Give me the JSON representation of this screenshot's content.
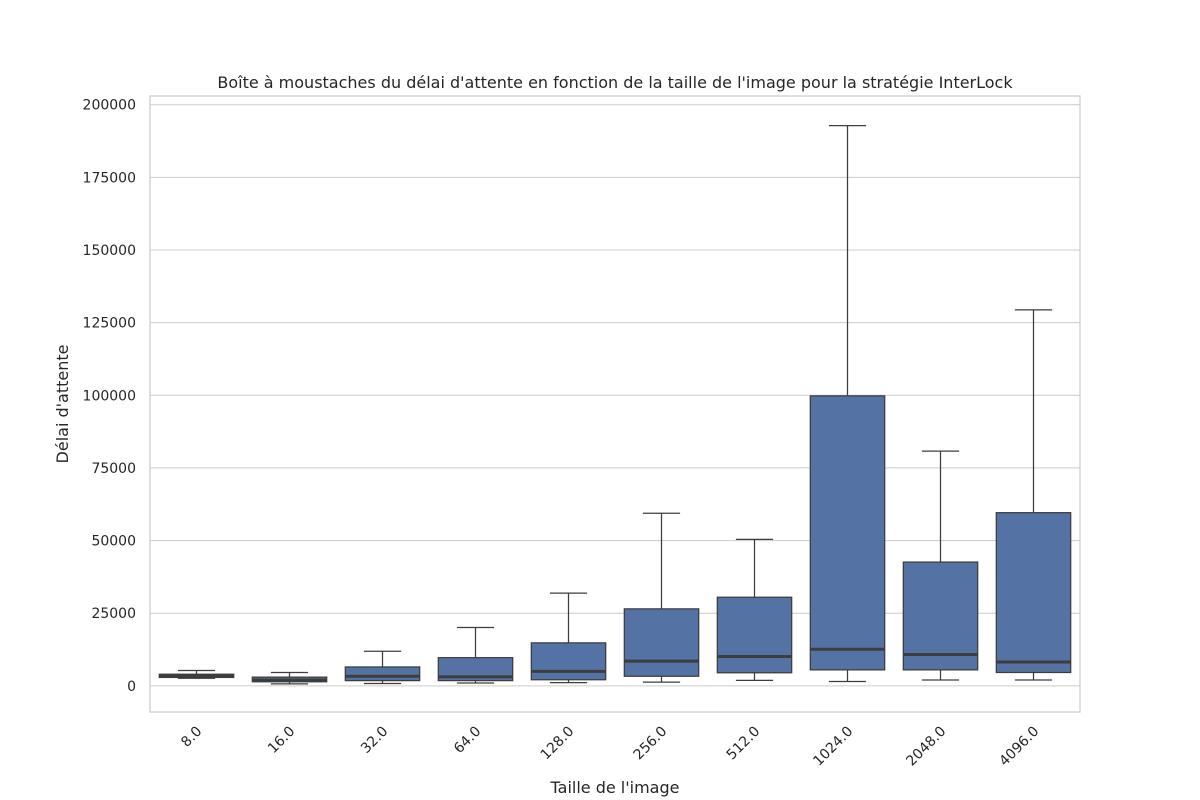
{
  "chart_data": {
    "type": "box",
    "title": "Boîte à moustaches du délai d'attente en fonction de la taille de l'image pour la stratégie InterLock",
    "xlabel": "Taille de l'image",
    "ylabel": "Délai d'attente",
    "ylim": [
      -9000,
      203000
    ],
    "yticks": [
      0,
      25000,
      50000,
      75000,
      100000,
      125000,
      150000,
      175000,
      200000
    ],
    "ytick_labels": [
      "0",
      "25000",
      "50000",
      "75000",
      "100000",
      "125000",
      "150000",
      "175000",
      "200000"
    ],
    "grid": true,
    "categories": [
      "8.0",
      "16.0",
      "32.0",
      "64.0",
      "128.0",
      "256.0",
      "512.0",
      "1024.0",
      "2048.0",
      "4096.0"
    ],
    "boxes": [
      {
        "whisker_low": 2600,
        "q1": 2900,
        "median": 3500,
        "q3": 4000,
        "whisker_high": 5300
      },
      {
        "whisker_low": 700,
        "q1": 1400,
        "median": 2000,
        "q3": 3000,
        "whisker_high": 4600
      },
      {
        "whisker_low": 800,
        "q1": 1800,
        "median": 3300,
        "q3": 6500,
        "whisker_high": 11900
      },
      {
        "whisker_low": 1000,
        "q1": 1800,
        "median": 3100,
        "q3": 9700,
        "whisker_high": 20100
      },
      {
        "whisker_low": 1100,
        "q1": 2100,
        "median": 5000,
        "q3": 14800,
        "whisker_high": 31900
      },
      {
        "whisker_low": 1300,
        "q1": 3300,
        "median": 8500,
        "q3": 26500,
        "whisker_high": 59400
      },
      {
        "whisker_low": 1900,
        "q1": 4500,
        "median": 10100,
        "q3": 30500,
        "whisker_high": 50400
      },
      {
        "whisker_low": 1500,
        "q1": 5500,
        "median": 12600,
        "q3": 99800,
        "whisker_high": 192800
      },
      {
        "whisker_low": 2000,
        "q1": 5500,
        "median": 10800,
        "q3": 42600,
        "whisker_high": 80800
      },
      {
        "whisker_low": 2000,
        "q1": 4600,
        "median": 8200,
        "q3": 59600,
        "whisker_high": 129400
      }
    ],
    "box_color": "#5572a5",
    "line_color": "#3d3d3d"
  }
}
